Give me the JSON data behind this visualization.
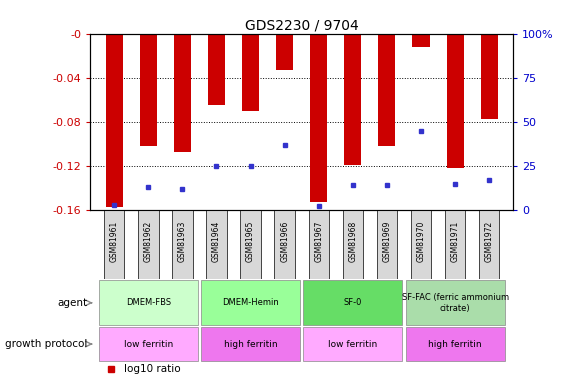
{
  "title": "GDS2230 / 9704",
  "samples": [
    "GSM81961",
    "GSM81962",
    "GSM81963",
    "GSM81964",
    "GSM81965",
    "GSM81966",
    "GSM81967",
    "GSM81968",
    "GSM81969",
    "GSM81970",
    "GSM81971",
    "GSM81972"
  ],
  "log10_ratio": [
    -0.157,
    -0.102,
    -0.107,
    -0.065,
    -0.07,
    -0.033,
    -0.153,
    -0.119,
    -0.102,
    -0.012,
    -0.122,
    -0.077
  ],
  "percentile_rank": [
    3,
    13,
    12,
    25,
    25,
    37,
    2,
    14,
    14,
    45,
    15,
    17
  ],
  "ymin": -0.16,
  "ymax": 0.0,
  "yticks": [
    -0.16,
    -0.12,
    -0.08,
    -0.04,
    0
  ],
  "right_yticks": [
    0,
    25,
    50,
    75,
    100
  ],
  "bar_color": "#cc0000",
  "marker_color": "#3333cc",
  "agent_groups": [
    {
      "label": "DMEM-FBS",
      "start": 0,
      "end": 2,
      "color": "#ccffcc"
    },
    {
      "label": "DMEM-Hemin",
      "start": 3,
      "end": 5,
      "color": "#99ff99"
    },
    {
      "label": "SF-0",
      "start": 6,
      "end": 8,
      "color": "#66dd66"
    },
    {
      "label": "SF-FAC (ferric ammonium\ncitrate)",
      "start": 9,
      "end": 11,
      "color": "#aaddaa"
    }
  ],
  "growth_groups": [
    {
      "label": "low ferritin",
      "start": 0,
      "end": 2,
      "color": "#ffaaff"
    },
    {
      "label": "high ferritin",
      "start": 3,
      "end": 5,
      "color": "#ee77ee"
    },
    {
      "label": "low ferritin",
      "start": 6,
      "end": 8,
      "color": "#ffaaff"
    },
    {
      "label": "high ferritin",
      "start": 9,
      "end": 11,
      "color": "#ee77ee"
    }
  ],
  "background_color": "#ffffff",
  "axis_label_color_left": "#cc0000",
  "axis_label_color_right": "#0000cc",
  "bar_width": 0.5,
  "xlim_left": -0.7,
  "xlim_right": 11.7
}
